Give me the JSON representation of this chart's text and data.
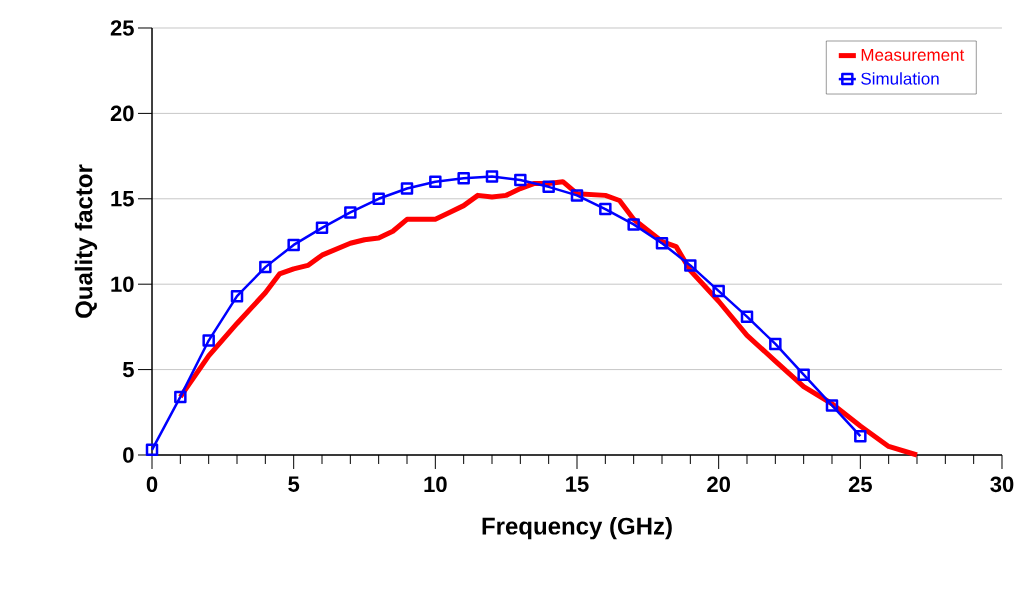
{
  "chart_data": {
    "type": "line",
    "xlabel": "Frequency (GHz)",
    "ylabel": "Quality factor",
    "xlim": [
      0,
      30
    ],
    "ylim": [
      0,
      25
    ],
    "xticks": [
      0,
      5,
      10,
      15,
      20,
      25,
      30
    ],
    "yticks": [
      0,
      5,
      10,
      15,
      20,
      25
    ],
    "grid": "y",
    "legend": "top right",
    "series": [
      {
        "name": "Measurement",
        "color": "#ff0000",
        "marker": "none",
        "x": [
          1,
          2,
          3,
          4,
          4.5,
          5,
          5.5,
          6,
          7,
          7.5,
          8,
          8.5,
          9,
          10,
          10.5,
          11,
          11.5,
          12,
          12.5,
          13,
          13.5,
          14,
          14.5,
          15,
          16,
          16.5,
          17,
          18,
          18.5,
          19,
          20,
          21,
          22,
          23,
          24,
          25,
          26,
          27
        ],
        "values": [
          3.4,
          5.8,
          7.7,
          9.5,
          10.6,
          10.9,
          11.1,
          11.7,
          12.4,
          12.6,
          12.7,
          13.1,
          13.8,
          13.8,
          14.2,
          14.6,
          15.2,
          15.1,
          15.2,
          15.6,
          15.9,
          15.9,
          16.0,
          15.3,
          15.2,
          14.9,
          13.8,
          12.5,
          12.2,
          10.8,
          9.0,
          7.0,
          5.5,
          4.0,
          3.0,
          1.7,
          0.5,
          0
        ]
      },
      {
        "name": "Simulation",
        "color": "#0000ff",
        "marker": "square",
        "x": [
          0,
          1,
          2,
          3,
          4,
          5,
          6,
          7,
          8,
          9,
          10,
          11,
          12,
          13,
          14,
          15,
          16,
          17,
          18,
          19,
          20,
          21,
          22,
          23,
          24,
          25
        ],
        "values": [
          0.3,
          3.4,
          6.7,
          9.3,
          11.0,
          12.3,
          13.3,
          14.2,
          15.0,
          15.6,
          16.0,
          16.2,
          16.3,
          16.1,
          15.7,
          15.2,
          14.4,
          13.5,
          12.4,
          11.1,
          9.6,
          8.1,
          6.5,
          4.7,
          2.9,
          1.1
        ]
      }
    ]
  }
}
